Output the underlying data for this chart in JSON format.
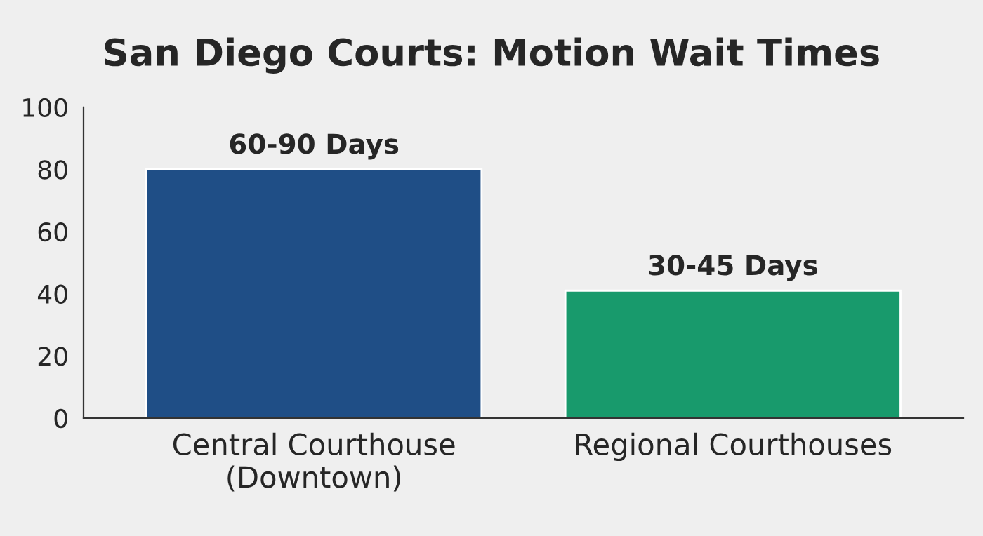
{
  "chart_data": {
    "type": "bar",
    "title": "San Diego Courts: Motion Wait Times",
    "categories": [
      "Central Courthouse\n(Downtown)",
      "Regional Courthouses"
    ],
    "values": [
      80,
      41
    ],
    "colors": [
      "#1f4e86",
      "#189a6c"
    ],
    "value_labels": [
      "60-90 Days",
      "30-45 Days"
    ],
    "ylim": [
      0,
      100
    ],
    "yticks": [
      0,
      20,
      40,
      60,
      80,
      100
    ],
    "grid": false,
    "legend": false
  }
}
